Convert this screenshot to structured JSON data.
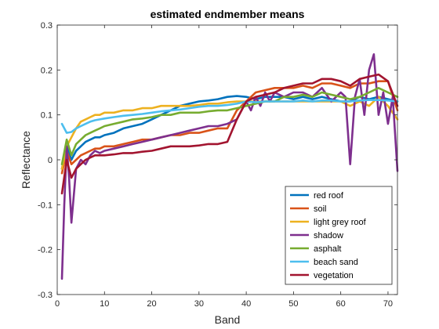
{
  "chart_data": {
    "type": "line",
    "title": "estimated endmember means",
    "xlabel": "Band",
    "ylabel": "Reflectance",
    "xlim": [
      0,
      72
    ],
    "ylim": [
      -0.3,
      0.3
    ],
    "xticks": [
      0,
      10,
      20,
      30,
      40,
      50,
      60,
      70
    ],
    "yticks": [
      -0.3,
      -0.2,
      -0.1,
      0,
      0.1,
      0.2,
      0.3
    ],
    "xtick_labels": [
      "0",
      "10",
      "20",
      "30",
      "40",
      "50",
      "60",
      "70"
    ],
    "ytick_labels": [
      "-0.3",
      "-0.2",
      "-0.1",
      "0",
      "0.1",
      "0.2",
      "0.3"
    ],
    "grid": false,
    "legend_position": "bottom-right",
    "series": [
      {
        "name": "red roof",
        "color": "#0072BD",
        "x": [
          1,
          2,
          3,
          4,
          5,
          6,
          7,
          8,
          9,
          10,
          12,
          14,
          16,
          18,
          20,
          22,
          24,
          26,
          28,
          30,
          32,
          34,
          36,
          38,
          40,
          42,
          44,
          46,
          48,
          50,
          52,
          54,
          56,
          58,
          60,
          62,
          64,
          66,
          68,
          70,
          72
        ],
        "y": [
          -0.02,
          0.03,
          0.0,
          0.02,
          0.03,
          0.04,
          0.045,
          0.05,
          0.05,
          0.055,
          0.06,
          0.07,
          0.075,
          0.08,
          0.09,
          0.1,
          0.11,
          0.12,
          0.125,
          0.13,
          0.132,
          0.135,
          0.14,
          0.142,
          0.14,
          0.135,
          0.14,
          0.14,
          0.14,
          0.135,
          0.14,
          0.135,
          0.14,
          0.135,
          0.13,
          0.13,
          0.14,
          0.135,
          0.14,
          0.135,
          0.13
        ]
      },
      {
        "name": "soil",
        "color": "#D95319",
        "x": [
          1,
          2,
          3,
          4,
          5,
          6,
          7,
          8,
          9,
          10,
          12,
          14,
          16,
          18,
          20,
          22,
          24,
          26,
          28,
          30,
          32,
          34,
          36,
          38,
          40,
          42,
          44,
          46,
          48,
          50,
          52,
          54,
          56,
          58,
          60,
          62,
          64,
          66,
          68,
          70,
          72
        ],
        "y": [
          -0.03,
          0.02,
          -0.01,
          0.0,
          0.01,
          0.015,
          0.02,
          0.025,
          0.025,
          0.03,
          0.03,
          0.035,
          0.04,
          0.045,
          0.045,
          0.05,
          0.055,
          0.055,
          0.06,
          0.06,
          0.065,
          0.07,
          0.07,
          0.11,
          0.13,
          0.15,
          0.155,
          0.16,
          0.16,
          0.16,
          0.165,
          0.16,
          0.17,
          0.17,
          0.165,
          0.16,
          0.17,
          0.17,
          0.175,
          0.175,
          0.11
        ]
      },
      {
        "name": "light grey roof",
        "color": "#EDB120",
        "x": [
          1,
          2,
          3,
          4,
          5,
          6,
          7,
          8,
          9,
          10,
          12,
          14,
          16,
          18,
          20,
          22,
          24,
          26,
          28,
          30,
          32,
          34,
          36,
          38,
          40,
          42,
          44,
          46,
          48,
          50,
          52,
          54,
          56,
          58,
          60,
          62,
          64,
          66,
          68,
          70,
          72
        ],
        "y": [
          -0.02,
          0.03,
          0.05,
          0.07,
          0.085,
          0.09,
          0.095,
          0.1,
          0.1,
          0.105,
          0.105,
          0.11,
          0.11,
          0.115,
          0.115,
          0.12,
          0.12,
          0.12,
          0.12,
          0.122,
          0.125,
          0.125,
          0.128,
          0.13,
          0.13,
          0.13,
          0.13,
          0.13,
          0.13,
          0.13,
          0.13,
          0.13,
          0.13,
          0.13,
          0.13,
          0.12,
          0.13,
          0.12,
          0.14,
          0.12,
          0.09
        ]
      },
      {
        "name": "shadow",
        "color": "#7E2F8E",
        "x": [
          1,
          1.5,
          2,
          2.5,
          3,
          4,
          5,
          6,
          7,
          8,
          9,
          10,
          12,
          14,
          16,
          18,
          20,
          22,
          24,
          26,
          28,
          30,
          32,
          34,
          36,
          38,
          40,
          41,
          42,
          43,
          44,
          45,
          46,
          48,
          50,
          52,
          54,
          56,
          58,
          60,
          61,
          62,
          63,
          64,
          65,
          66,
          67,
          68,
          69,
          70,
          71,
          72
        ],
        "y": [
          -0.265,
          -0.1,
          0.03,
          -0.04,
          -0.14,
          -0.02,
          0.0,
          -0.01,
          0.01,
          0.02,
          0.015,
          0.02,
          0.025,
          0.03,
          0.035,
          0.04,
          0.045,
          0.05,
          0.055,
          0.06,
          0.065,
          0.07,
          0.075,
          0.075,
          0.08,
          0.09,
          0.13,
          0.11,
          0.14,
          0.12,
          0.15,
          0.13,
          0.15,
          0.14,
          0.15,
          0.15,
          0.14,
          0.16,
          0.13,
          0.15,
          0.14,
          -0.01,
          0.14,
          0.18,
          0.1,
          0.2,
          0.235,
          0.1,
          0.15,
          0.08,
          0.14,
          -0.025
        ]
      },
      {
        "name": "asphalt",
        "color": "#77AC30",
        "x": [
          1,
          2,
          3,
          4,
          5,
          6,
          7,
          8,
          9,
          10,
          12,
          14,
          16,
          18,
          20,
          22,
          24,
          26,
          28,
          30,
          32,
          34,
          36,
          38,
          40,
          42,
          44,
          46,
          48,
          50,
          52,
          54,
          56,
          58,
          60,
          62,
          64,
          66,
          68,
          70,
          72
        ],
        "y": [
          -0.01,
          0.045,
          0.01,
          0.035,
          0.045,
          0.055,
          0.06,
          0.065,
          0.07,
          0.075,
          0.08,
          0.085,
          0.09,
          0.092,
          0.095,
          0.1,
          0.1,
          0.105,
          0.105,
          0.105,
          0.108,
          0.11,
          0.11,
          0.115,
          0.12,
          0.125,
          0.13,
          0.13,
          0.14,
          0.14,
          0.145,
          0.14,
          0.15,
          0.145,
          0.14,
          0.135,
          0.14,
          0.15,
          0.16,
          0.15,
          0.14
        ]
      },
      {
        "name": "beach sand",
        "color": "#4DBEEE",
        "x": [
          1,
          2,
          3,
          4,
          5,
          6,
          7,
          8,
          9,
          10,
          12,
          14,
          16,
          18,
          20,
          22,
          24,
          26,
          28,
          30,
          32,
          34,
          36,
          38,
          40,
          42,
          44,
          46,
          48,
          50,
          52,
          54,
          56,
          58,
          60,
          62,
          64,
          66,
          68,
          70,
          72
        ],
        "y": [
          0.08,
          0.06,
          0.062,
          0.07,
          0.075,
          0.08,
          0.085,
          0.088,
          0.09,
          0.092,
          0.095,
          0.098,
          0.1,
          0.102,
          0.105,
          0.108,
          0.11,
          0.112,
          0.115,
          0.118,
          0.12,
          0.12,
          0.122,
          0.125,
          0.13,
          0.128,
          0.13,
          0.13,
          0.13,
          0.13,
          0.132,
          0.13,
          0.132,
          0.132,
          0.13,
          0.13,
          0.132,
          0.133,
          0.133,
          0.132,
          0.13
        ]
      },
      {
        "name": "vegetation",
        "color": "#A2142F",
        "x": [
          1,
          2,
          3,
          4,
          5,
          6,
          7,
          8,
          9,
          10,
          12,
          14,
          16,
          18,
          20,
          22,
          24,
          26,
          28,
          30,
          32,
          34,
          36,
          38,
          40,
          42,
          44,
          46,
          48,
          50,
          52,
          54,
          56,
          58,
          60,
          62,
          64,
          66,
          68,
          70,
          72
        ],
        "y": [
          -0.075,
          0.0,
          -0.04,
          -0.02,
          -0.01,
          0.0,
          0.005,
          0.01,
          0.01,
          0.01,
          0.012,
          0.015,
          0.015,
          0.018,
          0.02,
          0.025,
          0.03,
          0.03,
          0.03,
          0.032,
          0.035,
          0.035,
          0.04,
          0.09,
          0.13,
          0.14,
          0.145,
          0.15,
          0.16,
          0.165,
          0.17,
          0.17,
          0.18,
          0.18,
          0.175,
          0.165,
          0.18,
          0.185,
          0.19,
          0.175,
          0.12
        ]
      }
    ]
  }
}
